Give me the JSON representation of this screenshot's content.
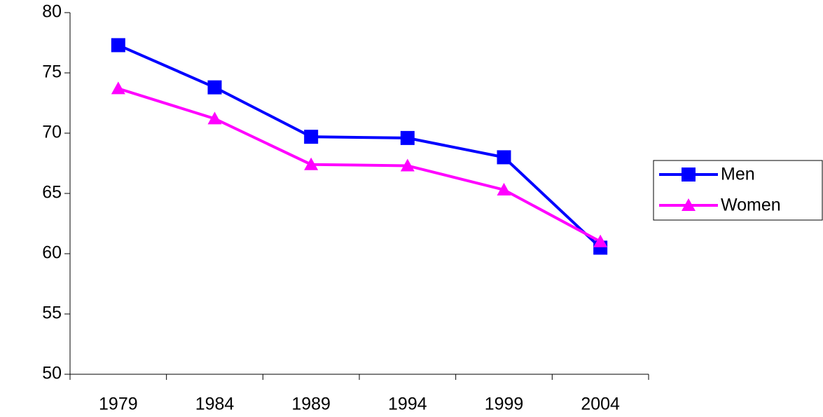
{
  "chart_data": {
    "type": "line",
    "categories": [
      "1979",
      "1984",
      "1989",
      "1994",
      "1999",
      "2004"
    ],
    "series": [
      {
        "name": "Men",
        "color": "#0000ff",
        "marker": "square",
        "values": [
          77.3,
          73.8,
          69.7,
          69.6,
          68.0,
          60.5
        ]
      },
      {
        "name": "Women",
        "color": "#ff00ff",
        "marker": "triangle",
        "values": [
          73.7,
          71.2,
          67.4,
          67.3,
          65.3,
          61.0
        ]
      }
    ],
    "ylim": [
      50,
      80
    ],
    "yticks": [
      50,
      55,
      60,
      65,
      70,
      75,
      80
    ],
    "grid": false,
    "legend": "right"
  }
}
